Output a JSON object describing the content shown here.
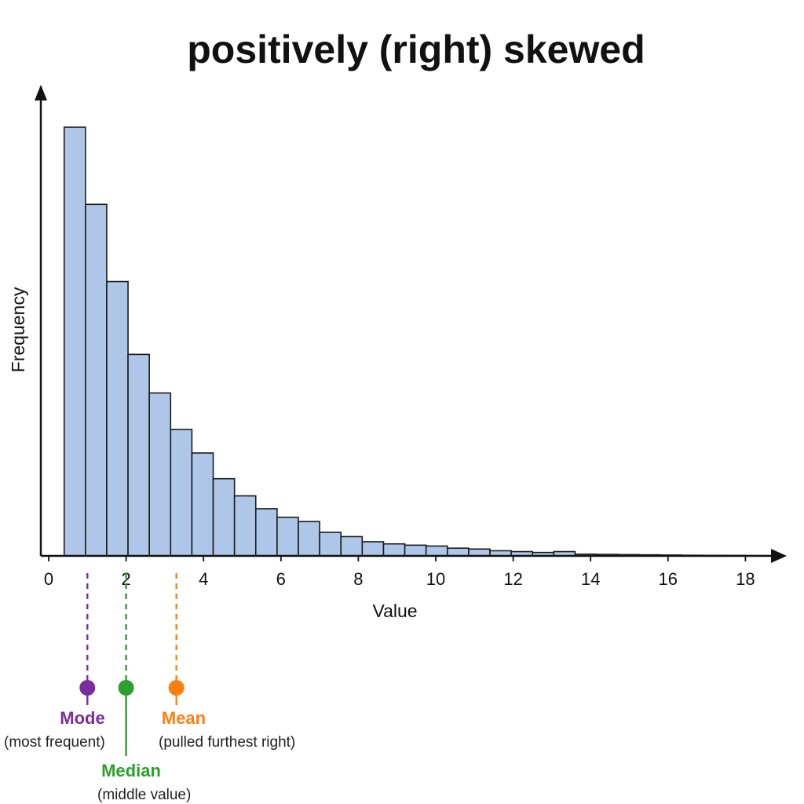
{
  "chart_data": {
    "type": "bar",
    "title": "positively (right) skewed",
    "xlabel": "Value",
    "ylabel": "Frequency",
    "xlim": [
      0,
      18.5
    ],
    "ylim": [
      0,
      100
    ],
    "x_ticks": [
      "0",
      "2",
      "4",
      "6",
      "8",
      "10",
      "12",
      "14",
      "16",
      "18"
    ],
    "bin_width": 0.55,
    "bins_start": 0.4,
    "values": [
      100,
      82,
      64,
      47,
      38,
      29.5,
      24,
      18,
      14,
      11,
      9,
      8,
      5.5,
      4.5,
      3.3,
      2.8,
      2.5,
      2.3,
      1.8,
      1.6,
      1.2,
      1.0,
      0.8,
      1.0,
      0.4,
      0.35,
      0.3,
      0.25,
      0.2,
      0.15,
      0.12,
      0.1,
      0.08
    ],
    "bar_color": "#aec7e8",
    "markers": [
      {
        "key": "mode",
        "label": "Mode",
        "description": "(most frequent)",
        "value": 1.0,
        "color": "#7b2d9e"
      },
      {
        "key": "median",
        "label": "Median",
        "description": "(middle value)",
        "value": 2.0,
        "color": "#2ca02c"
      },
      {
        "key": "mean",
        "label": "Mean",
        "description": "(pulled furthest right)",
        "value": 3.3,
        "color": "#ff7f0e"
      }
    ]
  }
}
